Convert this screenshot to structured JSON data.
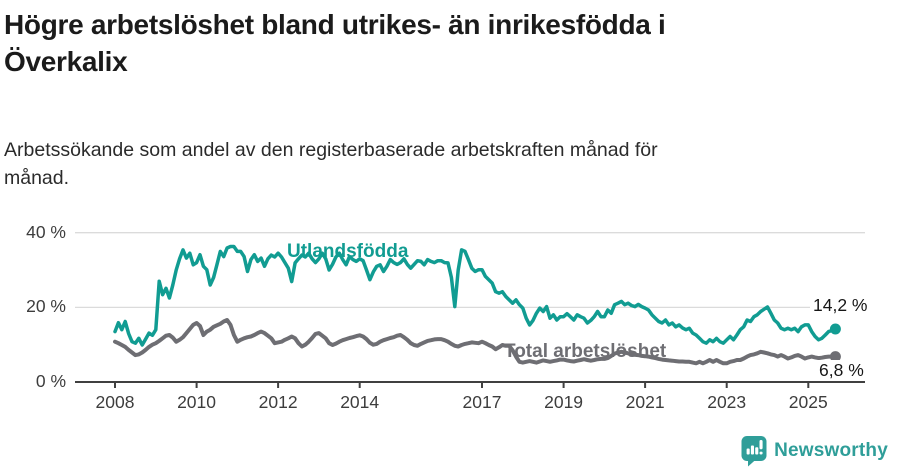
{
  "chart_data": {
    "type": "line",
    "title_lines": [
      "Högre arbetslöshet bland utrikes- än inrikesfödda i",
      "Överkalix"
    ],
    "subtitle_lines": [
      "Arbetssökande som andel av den registerbaserade arbetskraften månad för",
      "månad."
    ],
    "grid": "horizontal",
    "legend_position": "inline-labels",
    "ylim": [
      0,
      40
    ],
    "x_axis": {
      "ticks": [
        {
          "year": 2008,
          "label": "2008"
        },
        {
          "year": 2010,
          "label": "2010"
        },
        {
          "year": 2012,
          "label": "2012"
        },
        {
          "year": 2014,
          "label": "2014"
        },
        {
          "year": 2017,
          "label": "2017"
        },
        {
          "year": 2019,
          "label": "2019"
        },
        {
          "year": 2021,
          "label": "2021"
        },
        {
          "year": 2023,
          "label": "2023"
        },
        {
          "year": 2025,
          "label": "2025"
        }
      ]
    },
    "y_axis": {
      "ticks": [
        {
          "value": 0,
          "label": "0 %"
        },
        {
          "value": 20,
          "label": "20 %"
        },
        {
          "value": 40,
          "label": "40 %"
        }
      ]
    },
    "style": {
      "grid_color": "#dbdbdb",
      "axis_color": "#404040"
    },
    "series": [
      {
        "name": "Utlandsfödda",
        "color": "#119c92",
        "start_year": 2008,
        "interval_months": 1,
        "end_label": "14,2 %",
        "end_value": 14.2,
        "values": [
          13.5,
          15.9,
          14.0,
          16.2,
          13.0,
          10.8,
          10.4,
          11.7,
          9.9,
          11.5,
          13.1,
          12.5,
          14.0,
          27.0,
          23.4,
          25.1,
          22.5,
          26.0,
          30.0,
          33.0,
          35.4,
          33.2,
          34.5,
          31.4,
          32.0,
          34.1,
          31.0,
          30.1,
          26.0,
          28.0,
          31.4,
          35.0,
          33.6,
          35.9,
          36.3,
          36.3,
          35.0,
          35.0,
          33.6,
          29.6,
          32.8,
          34.1,
          32.3,
          33.2,
          31.0,
          33.0,
          34.0,
          33.5,
          34.5,
          33.5,
          32.0,
          30.5,
          26.9,
          31.9,
          33.0,
          34.0,
          33.5,
          34.5,
          33.0,
          32.0,
          33.0,
          34.5,
          33.0,
          30.0,
          31.5,
          33.5,
          34.5,
          32.8,
          31.4,
          33.6,
          32.8,
          32.3,
          33.0,
          32.5,
          30.0,
          27.4,
          29.5,
          31.0,
          31.4,
          29.6,
          31.0,
          32.8,
          32.0,
          31.5,
          32.0,
          33.0,
          31.5,
          30.5,
          31.5,
          32.5,
          32.3,
          31.4,
          32.8,
          32.3,
          32.0,
          32.5,
          32.5,
          32.0,
          31.9,
          28.0,
          20.2,
          30.0,
          35.4,
          35.0,
          32.8,
          30.5,
          29.6,
          30.1,
          30.1,
          28.3,
          27.4,
          26.5,
          24.2,
          23.8,
          24.2,
          22.9,
          22.0,
          21.1,
          22.0,
          20.7,
          19.8,
          17.1,
          15.3,
          16.5,
          18.4,
          19.8,
          18.9,
          20.2,
          17.1,
          18.0,
          16.6,
          17.5,
          17.5,
          18.3,
          17.5,
          16.6,
          18.0,
          17.5,
          17.1,
          15.8,
          16.5,
          17.5,
          18.9,
          17.5,
          17.5,
          19.3,
          18.4,
          20.7,
          21.1,
          21.6,
          20.7,
          21.1,
          20.5,
          20.2,
          20.8,
          20.2,
          19.8,
          19.3,
          18.0,
          17.1,
          16.2,
          15.8,
          16.6,
          15.3,
          15.8,
          14.8,
          15.3,
          14.5,
          14.0,
          14.4,
          13.1,
          12.6,
          11.7,
          10.8,
          10.4,
          11.3,
          10.8,
          11.7,
          10.8,
          10.4,
          11.3,
          12.2,
          11.3,
          12.6,
          14.0,
          14.8,
          16.6,
          16.2,
          17.5,
          18.0,
          18.9,
          19.5,
          20.1,
          18.4,
          16.6,
          15.8,
          14.4,
          14.0,
          14.4,
          14.0,
          14.4,
          13.5,
          14.8,
          15.3,
          15.3,
          13.5,
          12.2,
          11.3,
          11.7,
          12.6,
          13.5,
          13.8,
          14.2
        ]
      },
      {
        "name": "Total arbetslöshet",
        "color": "#6e6e73",
        "start_year": 2008,
        "interval_months": 1,
        "end_label": "6,8 %",
        "end_value": 6.8,
        "values": [
          10.8,
          10.4,
          9.9,
          9.4,
          8.6,
          7.9,
          7.2,
          7.4,
          7.9,
          8.6,
          9.4,
          10.0,
          10.4,
          11.0,
          11.7,
          12.4,
          12.6,
          11.9,
          10.8,
          11.3,
          12.0,
          13.1,
          14.2,
          15.3,
          15.8,
          15.0,
          12.6,
          13.5,
          14.0,
          14.8,
          15.2,
          15.6,
          16.2,
          16.6,
          15.3,
          12.6,
          10.8,
          11.3,
          11.7,
          12.0,
          12.2,
          12.6,
          13.1,
          13.5,
          13.1,
          12.4,
          11.7,
          10.4,
          10.6,
          10.8,
          11.3,
          11.7,
          12.2,
          11.7,
          10.4,
          9.5,
          10.0,
          10.8,
          11.8,
          12.9,
          13.1,
          12.4,
          11.7,
          10.4,
          9.9,
          10.3,
          10.8,
          11.2,
          11.5,
          11.8,
          12.0,
          12.3,
          12.5,
          12.2,
          11.5,
          10.5,
          10.0,
          10.2,
          10.8,
          11.2,
          11.5,
          11.8,
          12.0,
          12.4,
          12.6,
          12.0,
          11.3,
          10.4,
          9.9,
          9.7,
          10.2,
          10.6,
          11.0,
          11.2,
          11.4,
          11.5,
          11.5,
          11.2,
          10.8,
          10.2,
          9.7,
          9.5,
          9.9,
          10.2,
          10.4,
          10.6,
          10.5,
          10.4,
          10.8,
          10.4,
          9.9,
          9.5,
          8.8,
          9.3,
          9.9,
          9.7,
          9.7,
          8.5,
          6.8,
          5.4,
          5.2,
          5.4,
          5.6,
          5.4,
          5.2,
          5.5,
          5.8,
          5.6,
          5.4,
          5.6,
          5.8,
          6.0,
          6.0,
          5.8,
          5.6,
          5.5,
          5.7,
          5.9,
          6.1,
          5.9,
          5.7,
          5.9,
          6.1,
          6.2,
          6.2,
          6.4,
          7.0,
          7.6,
          7.9,
          8.1,
          7.9,
          7.7,
          7.5,
          7.3,
          7.2,
          7.0,
          6.9,
          6.8,
          6.6,
          6.4,
          6.2,
          6.0,
          5.9,
          5.8,
          5.7,
          5.6,
          5.5,
          5.5,
          5.4,
          5.4,
          5.2,
          5.0,
          5.4,
          5.0,
          5.4,
          5.9,
          5.4,
          5.9,
          5.4,
          5.0,
          5.0,
          5.4,
          5.6,
          5.9,
          5.9,
          6.3,
          6.8,
          7.2,
          7.4,
          7.7,
          8.1,
          7.9,
          7.7,
          7.4,
          7.2,
          6.8,
          7.2,
          6.8,
          6.3,
          6.6,
          7.0,
          7.2,
          6.8,
          6.3,
          6.6,
          6.8,
          6.6,
          6.4,
          6.5,
          6.7,
          6.8,
          6.8,
          6.8
        ]
      }
    ]
  },
  "footer": {
    "brand": "Newsworthy",
    "brand_color": "#2f9e99"
  }
}
